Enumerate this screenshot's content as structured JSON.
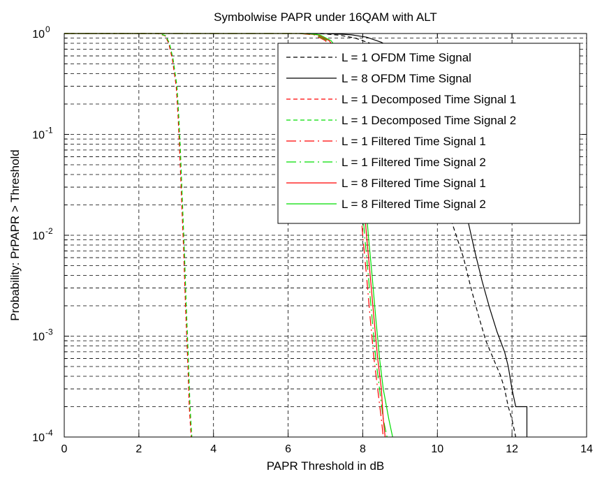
{
  "chart_data": {
    "type": "line",
    "title": "Symbolwise PAPR under 16QAM with ALT",
    "xlabel": "PAPR Threshold in dB",
    "ylabel": "Probability: PrPAPR > Threshold",
    "xlim": [
      0,
      14
    ],
    "ylim": [
      0.0001,
      1
    ],
    "yscale": "log",
    "grid": true,
    "legend_position": "top-right",
    "x_ticks": [
      0,
      2,
      4,
      6,
      8,
      10,
      12,
      14
    ],
    "x_tick_labels": [
      "0",
      "2",
      "4",
      "6",
      "8",
      "10",
      "12",
      "14"
    ],
    "y_ticks": [
      {
        "base": "10",
        "exp": "0",
        "value": 1
      },
      {
        "base": "10",
        "exp": "-1",
        "value": 0.1
      },
      {
        "base": "10",
        "exp": "-2",
        "value": 0.01
      },
      {
        "base": "10",
        "exp": "-3",
        "value": 0.001
      },
      {
        "base": "10",
        "exp": "-4",
        "value": 0.0001
      }
    ],
    "series": [
      {
        "name": "L = 1 OFDM Time Signal",
        "color": "#000000",
        "dash": "6,4",
        "x": [
          6.3,
          6.6,
          7.0,
          7.4,
          7.8,
          8.2,
          8.6,
          9.0,
          9.4,
          9.8,
          10.1,
          10.4,
          10.7,
          10.9,
          11.1,
          11.3,
          11.5,
          11.7,
          11.8,
          11.9,
          12.0,
          12.1
        ],
        "y": [
          1,
          1,
          0.99,
          0.96,
          0.9,
          0.8,
          0.65,
          0.45,
          0.25,
          0.1,
          0.035,
          0.013,
          0.006,
          0.003,
          0.0016,
          0.0009,
          0.0006,
          0.0004,
          0.0003,
          0.0002,
          0.00015,
          0.0001
        ]
      },
      {
        "name": "L = 8 OFDM Time Signal",
        "color": "#000000",
        "dash": "",
        "x": [
          6.5,
          6.9,
          7.3,
          7.7,
          8.1,
          8.5,
          8.9,
          9.3,
          9.7,
          10.1,
          10.5,
          10.8,
          11.0,
          11.2,
          11.4,
          11.6,
          11.8,
          11.9,
          12.0,
          12.1,
          12.3,
          12.4,
          12.4
        ],
        "y": [
          1,
          1,
          0.99,
          0.97,
          0.92,
          0.82,
          0.67,
          0.47,
          0.26,
          0.11,
          0.04,
          0.015,
          0.007,
          0.0035,
          0.0019,
          0.0011,
          0.0007,
          0.0005,
          0.0003,
          0.0002,
          0.0002,
          0.0002,
          0.0001
        ]
      },
      {
        "name": "L = 1 Decomposed Time Signal 1",
        "color": "#ff0000",
        "dash": "6,4",
        "x": [
          0,
          2.5,
          2.7,
          2.8,
          2.9,
          3.0,
          3.05,
          3.1,
          3.15,
          3.2,
          3.25,
          3.3,
          3.35,
          3.4
        ],
        "y": [
          1,
          1,
          0.95,
          0.8,
          0.55,
          0.3,
          0.15,
          0.06,
          0.02,
          0.007,
          0.002,
          0.0007,
          0.0002,
          0.0001
        ]
      },
      {
        "name": "L = 1 Decomposed Time Signal 2",
        "color": "#00dd00",
        "dash": "6,4",
        "x": [
          0,
          2.55,
          2.72,
          2.82,
          2.92,
          3.02,
          3.07,
          3.12,
          3.17,
          3.22,
          3.27,
          3.32,
          3.37,
          3.42
        ],
        "y": [
          1,
          1,
          0.95,
          0.8,
          0.55,
          0.3,
          0.15,
          0.06,
          0.02,
          0.007,
          0.002,
          0.0007,
          0.0002,
          0.0001
        ]
      },
      {
        "name": "L = 1 Filtered Time Signal 1",
        "color": "#ff0000",
        "dash": "14,5,2,5",
        "x": [
          0,
          6.3,
          6.7,
          7.0,
          7.3,
          7.55,
          7.75,
          7.9,
          8.0,
          8.1,
          8.2,
          8.3,
          8.4,
          8.5,
          8.55
        ],
        "y": [
          1,
          1,
          0.97,
          0.85,
          0.6,
          0.3,
          0.1,
          0.03,
          0.01,
          0.004,
          0.0015,
          0.0006,
          0.0003,
          0.00015,
          0.0001
        ]
      },
      {
        "name": "L = 1 Filtered Time Signal 2",
        "color": "#00dd00",
        "dash": "14,5,2,5",
        "x": [
          0,
          6.35,
          6.75,
          7.05,
          7.35,
          7.6,
          7.8,
          7.95,
          8.05,
          8.15,
          8.25,
          8.35,
          8.45,
          8.55,
          8.65
        ],
        "y": [
          1,
          1,
          0.97,
          0.85,
          0.6,
          0.3,
          0.1,
          0.03,
          0.01,
          0.004,
          0.0015,
          0.0006,
          0.0003,
          0.00015,
          0.0001
        ]
      },
      {
        "name": "L = 8 Filtered Time Signal 1",
        "color": "#ff0000",
        "dash": "",
        "x": [
          0,
          6.4,
          6.8,
          7.1,
          7.4,
          7.65,
          7.85,
          8.0,
          8.1,
          8.2,
          8.3,
          8.4,
          8.5,
          8.55,
          8.6
        ],
        "y": [
          1,
          1,
          0.97,
          0.85,
          0.6,
          0.3,
          0.1,
          0.03,
          0.01,
          0.004,
          0.0015,
          0.0006,
          0.0003,
          0.00015,
          0.0001
        ]
      },
      {
        "name": "L = 8 Filtered Time Signal 2",
        "color": "#00dd00",
        "dash": "",
        "x": [
          0,
          6.5,
          6.85,
          7.15,
          7.45,
          7.7,
          7.9,
          8.05,
          8.15,
          8.25,
          8.35,
          8.45,
          8.55,
          8.7,
          8.8
        ],
        "y": [
          1,
          1,
          0.97,
          0.85,
          0.6,
          0.3,
          0.1,
          0.03,
          0.01,
          0.004,
          0.0015,
          0.0006,
          0.0003,
          0.00015,
          0.0001
        ]
      }
    ]
  }
}
